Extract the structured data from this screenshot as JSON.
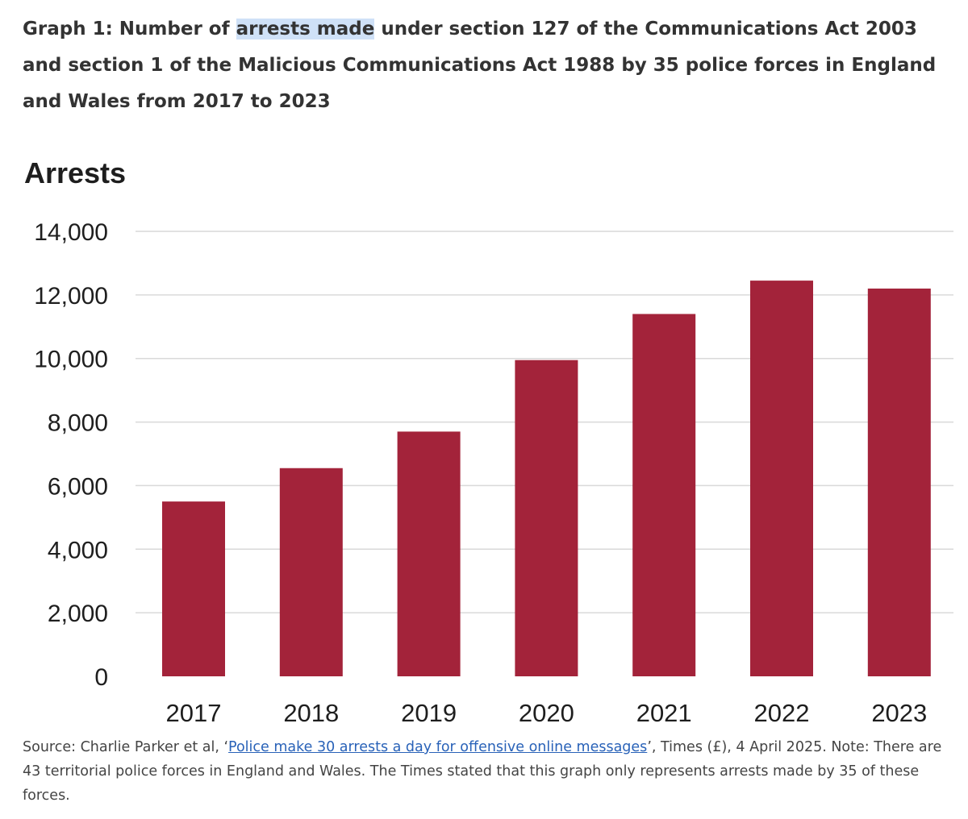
{
  "caption": {
    "before": "Graph 1: Number of ",
    "highlighted": "arrests made",
    "after": " under section 127 of the Communications Act 2003 and section 1 of the Malicious Communications Act 1988 by 35 police forces in England and Wales from 2017 to 2023"
  },
  "colors": {
    "bar": "#a3233a",
    "highlight": "#cfe1f7",
    "link": "#2962b8"
  },
  "chart_data": {
    "type": "bar",
    "title": "",
    "ylabel": "Arrests",
    "xlabel": "",
    "categories": [
      "2017",
      "2018",
      "2019",
      "2020",
      "2021",
      "2022",
      "2023"
    ],
    "values": [
      5500,
      6550,
      7700,
      9950,
      11400,
      12450,
      12200
    ],
    "ylim": [
      0,
      14000
    ],
    "yticks": [
      0,
      2000,
      4000,
      6000,
      8000,
      10000,
      12000,
      14000
    ],
    "ytick_labels": [
      "0",
      "2,000",
      "4,000",
      "6,000",
      "8,000",
      "10,000",
      "12,000",
      "14,000"
    ],
    "grid": true,
    "legend": "none"
  },
  "source": {
    "prefix": "Source: Charlie Parker et al, ‘",
    "link_text": "Police make 30 arrests a day for offensive online messages",
    "suffix": "’, Times (£), 4 April 2025. Note: There are 43 territorial police forces in England and Wales. The Times stated that this graph only represents arrests made by 35 of these forces."
  }
}
